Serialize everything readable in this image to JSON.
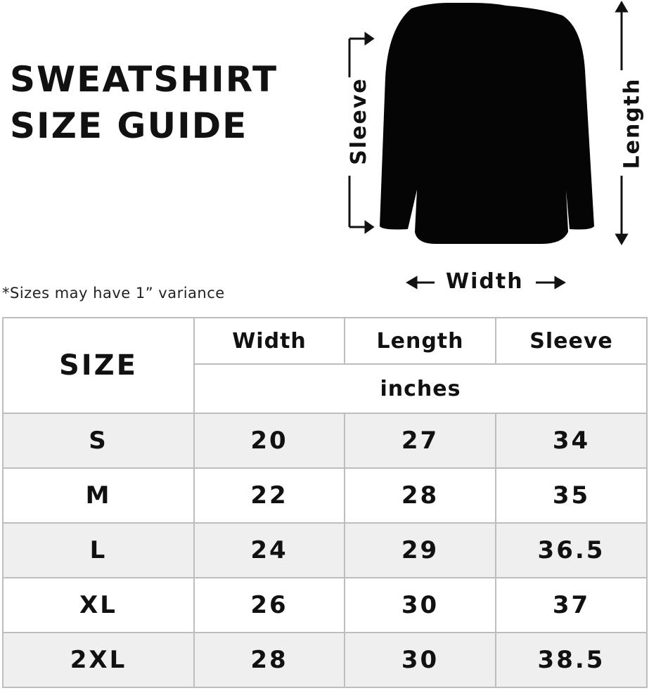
{
  "title": [
    "SWEATSHIRT",
    "SIZE GUIDE"
  ],
  "note": "*Sizes may have 1” variance",
  "diagram": {
    "sleeve_label": "Sleeve",
    "length_label": "Length",
    "width_label": "Width"
  },
  "table": {
    "size_header": "SIZE",
    "columns": [
      "Width",
      "Length",
      "Sleeve"
    ],
    "unit": "inches",
    "rows": [
      {
        "size": "S",
        "width": "20",
        "length": "27",
        "sleeve": "34"
      },
      {
        "size": "M",
        "width": "22",
        "length": "28",
        "sleeve": "35"
      },
      {
        "size": "L",
        "width": "24",
        "length": "29",
        "sleeve": "36.5"
      },
      {
        "size": "XL",
        "width": "26",
        "length": "30",
        "sleeve": "37"
      },
      {
        "size": "2XL",
        "width": "28",
        "length": "30",
        "sleeve": "38.5"
      }
    ]
  }
}
